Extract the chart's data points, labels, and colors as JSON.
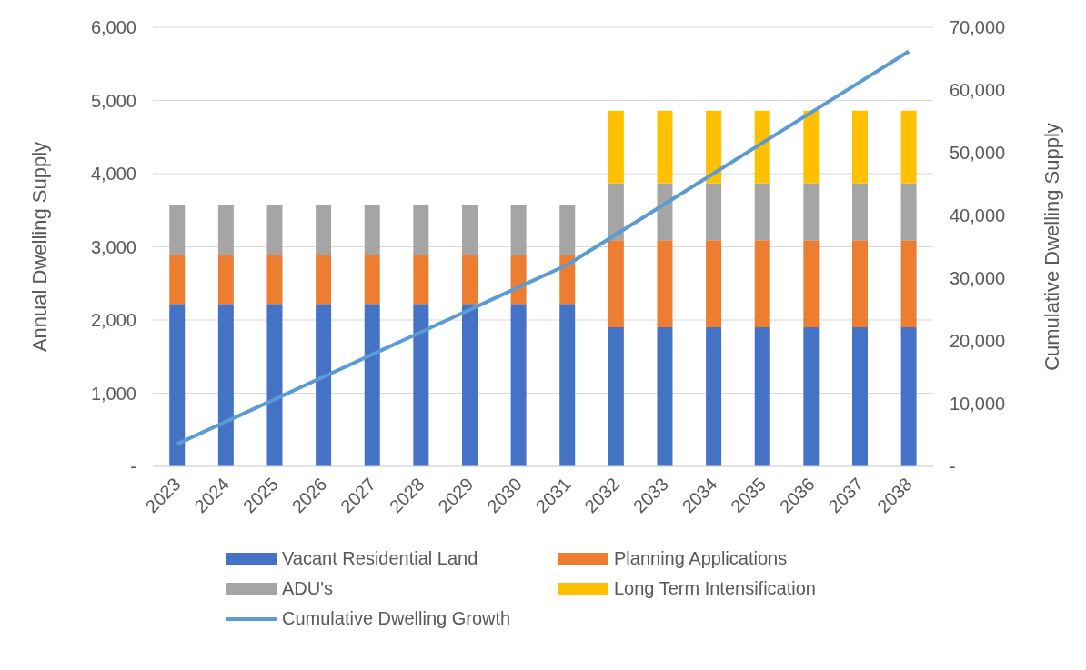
{
  "chart_data": {
    "type": "bar",
    "stacked": true,
    "ylabel": "Annual Dwelling Supply",
    "y2label": "Cumulative Dwelling Supply",
    "categories": [
      "2023",
      "2024",
      "2025",
      "2026",
      "2027",
      "2028",
      "2029",
      "2030",
      "2031",
      "2032",
      "2033",
      "2034",
      "2035",
      "2036",
      "2037",
      "2038"
    ],
    "series": [
      {
        "name": "Vacant Residential Land",
        "color": "#4472c4",
        "values": [
          2220,
          2220,
          2220,
          2220,
          2220,
          2220,
          2220,
          2220,
          2220,
          1900,
          1900,
          1900,
          1900,
          1900,
          1900,
          1900
        ]
      },
      {
        "name": "Planning Applications",
        "color": "#ed7d31",
        "values": [
          670,
          670,
          670,
          670,
          670,
          670,
          670,
          670,
          670,
          1190,
          1190,
          1190,
          1190,
          1190,
          1190,
          1190
        ]
      },
      {
        "name": "ADU's",
        "color": "#a5a5a5",
        "values": [
          680,
          680,
          680,
          680,
          680,
          680,
          680,
          680,
          680,
          780,
          780,
          780,
          780,
          780,
          780,
          780
        ]
      },
      {
        "name": "Long Term Intensification",
        "color": "#ffc000",
        "values": [
          null,
          null,
          null,
          null,
          null,
          null,
          null,
          null,
          null,
          990,
          990,
          990,
          990,
          990,
          990,
          990
        ]
      },
      {
        "name": "Cumulative Dwelling Growth",
        "type": "line",
        "axis": "y2",
        "color": "#5b9bd5",
        "values": [
          3570,
          7140,
          10710,
          14280,
          17850,
          21420,
          24990,
          28560,
          32130,
          36990,
          41850,
          46710,
          51570,
          56430,
          61290,
          66150
        ]
      }
    ],
    "ylim": [
      0,
      6000
    ],
    "yticks": [
      {
        "value": 0,
        "label": "-"
      },
      {
        "value": 1000,
        "label": "1,000"
      },
      {
        "value": 2000,
        "label": "2,000"
      },
      {
        "value": 3000,
        "label": "3,000"
      },
      {
        "value": 4000,
        "label": "4,000"
      },
      {
        "value": 5000,
        "label": "5,000"
      },
      {
        "value": 6000,
        "label": "6,000"
      }
    ],
    "y2lim": [
      0,
      70000
    ],
    "y2ticks": [
      {
        "value": 0,
        "label": "-"
      },
      {
        "value": 10000,
        "label": "10,000"
      },
      {
        "value": 20000,
        "label": "20,000"
      },
      {
        "value": 30000,
        "label": "30,000"
      },
      {
        "value": 40000,
        "label": "40,000"
      },
      {
        "value": 50000,
        "label": "50,000"
      },
      {
        "value": 60000,
        "label": "60,000"
      },
      {
        "value": 70000,
        "label": "70,000"
      }
    ],
    "grid": "y",
    "legend": "bottom",
    "marker": "none"
  }
}
